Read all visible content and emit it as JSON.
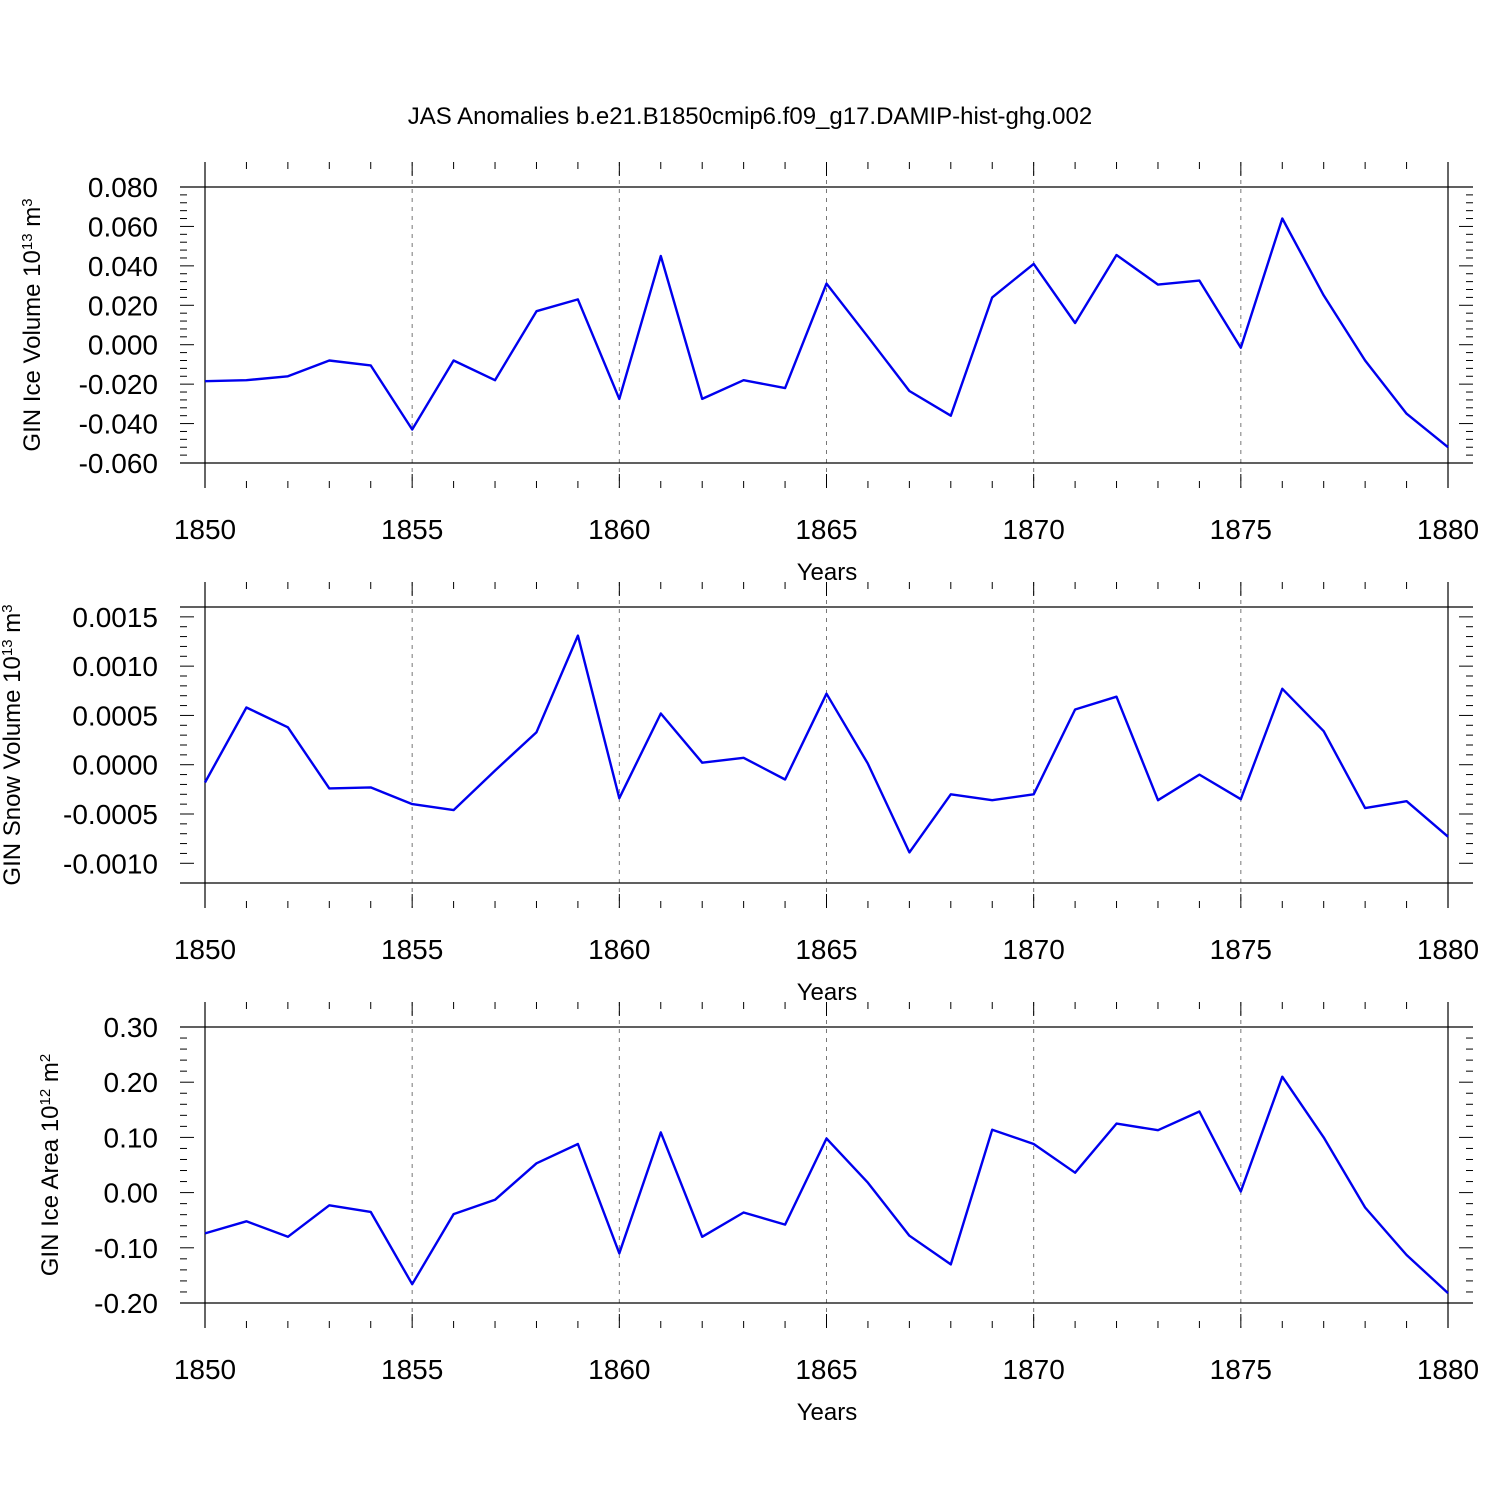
{
  "figure": {
    "title": "JAS Anomalies b.e21.B1850cmip6.f09_g17.DAMIP-hist-ghg.002"
  },
  "chart_data": [
    {
      "type": "line",
      "xlabel": "Years",
      "ylabel_main": "GIN Ice Volume 10",
      "ylabel_exp": "13",
      "ylabel_unit": " m",
      "ylabel_unit_exp": "3",
      "xlim": [
        1850,
        1880
      ],
      "ylim": [
        -0.06,
        0.08
      ],
      "xticks": [
        1850,
        1855,
        1860,
        1865,
        1870,
        1875,
        1880
      ],
      "xtick_labels": [
        "1850",
        "1855",
        "1860",
        "1865",
        "1870",
        "1875",
        "1880"
      ],
      "yticks": [
        -0.06,
        -0.04,
        -0.02,
        0.0,
        0.02,
        0.04,
        0.06,
        0.08
      ],
      "ytick_labels": [
        "-0.060",
        "-0.040",
        "-0.020",
        "0.000",
        "0.020",
        "0.040",
        "0.060",
        "0.080"
      ],
      "vgrid": "dashed at labelled years",
      "line_color": "#0000ee",
      "x": [
        1850,
        1851,
        1852,
        1853,
        1854,
        1855,
        1856,
        1857,
        1858,
        1859,
        1860,
        1861,
        1862,
        1863,
        1864,
        1865,
        1866,
        1867,
        1868,
        1869,
        1870,
        1871,
        1872,
        1873,
        1874,
        1875,
        1876,
        1877,
        1878,
        1879,
        1880
      ],
      "y": [
        -0.0185,
        -0.018,
        -0.016,
        -0.008,
        -0.0105,
        -0.043,
        -0.008,
        -0.018,
        0.017,
        0.023,
        -0.0275,
        0.045,
        -0.0275,
        -0.018,
        -0.022,
        0.031,
        0.004,
        -0.0235,
        -0.036,
        0.024,
        0.041,
        0.011,
        0.0455,
        0.0305,
        0.0325,
        -0.0015,
        0.064,
        0.025,
        -0.008,
        -0.035,
        -0.052
      ]
    },
    {
      "type": "line",
      "xlabel": "Years",
      "ylabel_main": "GIN Snow Volume 10",
      "ylabel_exp": "13",
      "ylabel_unit": " m",
      "ylabel_unit_exp": "3",
      "xlim": [
        1850,
        1880
      ],
      "ylim": [
        -0.0012,
        0.0016
      ],
      "xticks": [
        1850,
        1855,
        1860,
        1865,
        1870,
        1875,
        1880
      ],
      "xtick_labels": [
        "1850",
        "1855",
        "1860",
        "1865",
        "1870",
        "1875",
        "1880"
      ],
      "yticks": [
        -0.001,
        -0.0005,
        0.0,
        0.0005,
        0.001,
        0.0015
      ],
      "ytick_labels": [
        "-0.0010",
        "-0.0005",
        "0.0000",
        "0.0005",
        "0.0010",
        "0.0015"
      ],
      "vgrid": "dashed at labelled years",
      "line_color": "#0000ee",
      "x": [
        1850,
        1851,
        1852,
        1853,
        1854,
        1855,
        1856,
        1857,
        1858,
        1859,
        1860,
        1861,
        1862,
        1863,
        1864,
        1865,
        1866,
        1867,
        1868,
        1869,
        1870,
        1871,
        1872,
        1873,
        1874,
        1875,
        1876,
        1877,
        1878,
        1879,
        1880
      ],
      "y": [
        -0.00018,
        0.00058,
        0.00038,
        -0.00024,
        -0.00023,
        -0.0004,
        -0.00046,
        -6e-05,
        0.00033,
        0.00131,
        -0.00034,
        0.00052,
        2e-05,
        7e-05,
        -0.00015,
        0.00072,
        1e-05,
        -0.00089,
        -0.0003,
        -0.00036,
        -0.0003,
        0.00056,
        0.00069,
        -0.00036,
        -0.0001,
        -0.00035,
        0.00077,
        0.00034,
        -0.00044,
        -0.00037,
        -0.00073
      ]
    },
    {
      "type": "line",
      "xlabel": "Years",
      "ylabel_main": "GIN Ice Area 10",
      "ylabel_exp": "12",
      "ylabel_unit": " m",
      "ylabel_unit_exp": "2",
      "xlim": [
        1850,
        1880
      ],
      "ylim": [
        -0.2,
        0.3
      ],
      "xticks": [
        1850,
        1855,
        1860,
        1865,
        1870,
        1875,
        1880
      ],
      "xtick_labels": [
        "1850",
        "1855",
        "1860",
        "1865",
        "1870",
        "1875",
        "1880"
      ],
      "yticks": [
        -0.2,
        -0.1,
        0.0,
        0.1,
        0.2,
        0.3
      ],
      "ytick_labels": [
        "-0.20",
        "-0.10",
        "0.00",
        "0.10",
        "0.20",
        "0.30"
      ],
      "vgrid": "dashed at labelled years",
      "line_color": "#0000ee",
      "x": [
        1850,
        1851,
        1852,
        1853,
        1854,
        1855,
        1856,
        1857,
        1858,
        1859,
        1860,
        1861,
        1862,
        1863,
        1864,
        1865,
        1866,
        1867,
        1868,
        1869,
        1870,
        1871,
        1872,
        1873,
        1874,
        1875,
        1876,
        1877,
        1878,
        1879,
        1880
      ],
      "y": [
        -0.074,
        -0.052,
        -0.08,
        -0.023,
        -0.035,
        -0.166,
        -0.039,
        -0.013,
        0.053,
        0.088,
        -0.11,
        0.109,
        -0.08,
        -0.036,
        -0.058,
        0.098,
        0.018,
        -0.078,
        -0.13,
        0.114,
        0.088,
        0.036,
        0.125,
        0.113,
        0.147,
        0.002,
        0.21,
        0.1,
        -0.027,
        -0.113,
        -0.182
      ]
    }
  ]
}
